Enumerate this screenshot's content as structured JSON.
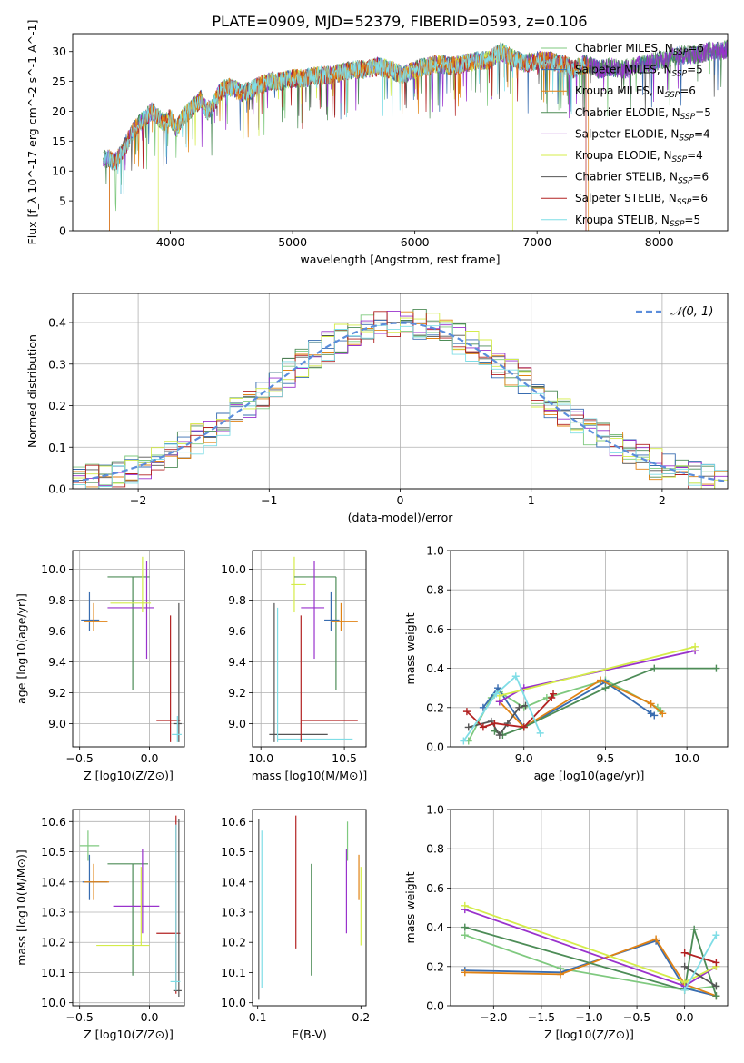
{
  "figure": {
    "title": "PLATE=0909, MJD=52379, FIBERID=0593, z=0.106"
  },
  "models": [
    {
      "name": "Chabrier MILES",
      "nssp": 6,
      "color": "#7fc97f"
    },
    {
      "name": "Salpeter MILES",
      "nssp": 5,
      "color": "#386cb0"
    },
    {
      "name": "Kroupa MILES",
      "nssp": 6,
      "color": "#e08214"
    },
    {
      "name": "Chabrier ELODIE",
      "nssp": 5,
      "color": "#4d8c57"
    },
    {
      "name": "Salpeter ELODIE",
      "nssp": 4,
      "color": "#9932cc"
    },
    {
      "name": "Kroupa ELODIE",
      "nssp": 4,
      "color": "#d4ec4a"
    },
    {
      "name": "Chabrier STELIB",
      "nssp": 6,
      "color": "#555555"
    },
    {
      "name": "Salpeter STELIB",
      "nssp": 6,
      "color": "#b22222"
    },
    {
      "name": "Kroupa STELIB",
      "nssp": 5,
      "color": "#7fdde6"
    }
  ],
  "chart_data": [
    {
      "id": "spectrum",
      "type": "line",
      "xlabel": "wavelength [Angstrom, rest frame]",
      "ylabel": "Flux [f_λ 10^-17 erg cm^-2 s^-1 A^-1]",
      "xlim": [
        3200,
        8560
      ],
      "ylim": [
        0,
        33
      ],
      "xticks": [
        4000,
        5000,
        6000,
        7000,
        8000
      ],
      "yticks": [
        0,
        5,
        10,
        15,
        20,
        25,
        30
      ],
      "legend_position": "right",
      "x": [
        3500,
        3550,
        3600,
        3650,
        3700,
        3750,
        3800,
        3850,
        3900,
        3950,
        4000,
        4050,
        4100,
        4150,
        4200,
        4250,
        4300,
        4350,
        4400,
        4450,
        4500,
        4600,
        4700,
        4800,
        4900,
        5000,
        5100,
        5200,
        5300,
        5400,
        5500,
        5600,
        5700,
        5800,
        5900,
        6000,
        6100,
        6200,
        6300,
        6400,
        6500,
        6600,
        6700,
        6800,
        6900,
        7000,
        7100,
        7200,
        7300,
        7400,
        7500,
        7600,
        7700,
        7800,
        7900,
        8000,
        8100,
        8200,
        8300,
        8400,
        8500,
        8560
      ],
      "flux": [
        12,
        11.5,
        13,
        15,
        17,
        18,
        19,
        20,
        19,
        18,
        19,
        17,
        19,
        20,
        21,
        22,
        20,
        21,
        23,
        24,
        24,
        23,
        24,
        25,
        25,
        25.5,
        25.5,
        26,
        26,
        26.5,
        27,
        27,
        27.5,
        27,
        26,
        27,
        27.5,
        28,
        27.5,
        28,
        28.5,
        28.5,
        30,
        29,
        28,
        28.5,
        28.5,
        28,
        27,
        28,
        27,
        27.5,
        27,
        27.5,
        28,
        28.5,
        29,
        29.5,
        29.5,
        30,
        30,
        30.5
      ]
    },
    {
      "id": "residuals",
      "type": "histogram",
      "xlabel": "(data-model)/error",
      "ylabel": "Normed distribution",
      "xlim": [
        -2.5,
        2.5
      ],
      "ylim": [
        0,
        0.47
      ],
      "xticks": [
        -2,
        -1,
        0,
        1,
        2
      ],
      "yticks": [
        0.0,
        0.1,
        0.2,
        0.3,
        0.4
      ],
      "gaussian_label": "𝒩(0, 1)",
      "gaussian_color": "#5b8ddb",
      "bin_width": 0.1
    },
    {
      "id": "age-vs-Z",
      "type": "errorbar",
      "xlabel": "Z [log10(Z/Z⊙)]",
      "ylabel": "age  [log10(age/yr)]",
      "xlim": [
        -0.55,
        0.25
      ],
      "ylim": [
        8.85,
        10.12
      ],
      "xticks": [
        -0.5,
        0.0
      ],
      "yticks": [
        9.0,
        9.2,
        9.4,
        9.6,
        9.8,
        10.0
      ],
      "points": [
        {
          "m": 1,
          "x": -0.43,
          "xl": -0.49,
          "xh": -0.36,
          "y": 9.67,
          "yl": 9.6,
          "yh": 9.85
        },
        {
          "m": 2,
          "x": -0.4,
          "xl": -0.47,
          "xh": -0.3,
          "y": 9.66,
          "yl": 9.6,
          "yh": 9.78
        },
        {
          "m": 3,
          "x": -0.12,
          "xl": -0.3,
          "xh": 0.0,
          "y": 9.95,
          "yl": 9.22,
          "yh": 9.95
        },
        {
          "m": 4,
          "x": -0.02,
          "xl": -0.3,
          "xh": 0.03,
          "y": 9.75,
          "yl": 9.42,
          "yh": 10.05
        },
        {
          "m": 5,
          "x": -0.05,
          "xl": -0.28,
          "xh": 0.01,
          "y": 9.78,
          "yl": 9.72,
          "yh": 10.08
        },
        {
          "m": 7,
          "x": 0.15,
          "xl": 0.05,
          "xh": 0.22,
          "y": 9.02,
          "yl": 8.88,
          "yh": 9.7
        },
        {
          "m": 6,
          "x": 0.21,
          "xl": 0.17,
          "xh": 0.23,
          "y": 9.0,
          "yl": 8.88,
          "yh": 9.78
        },
        {
          "m": 8,
          "x": 0.2,
          "xl": 0.16,
          "xh": 0.23,
          "y": 8.93,
          "yl": 8.88,
          "yh": 9.05
        }
      ]
    },
    {
      "id": "age-vs-mass",
      "type": "errorbar",
      "xlabel": "mass [log10(M/M⊙)]",
      "xlim": [
        9.95,
        10.63
      ],
      "ylim": [
        8.85,
        10.12
      ],
      "xticks": [
        10.0,
        10.5
      ],
      "yticks": [
        9.0,
        9.2,
        9.4,
        9.6,
        9.8,
        10.0
      ],
      "points": [
        {
          "m": 6,
          "x": 10.08,
          "xl": 10.05,
          "xh": 10.4,
          "y": 8.93,
          "yl": 8.88,
          "yh": 9.78
        },
        {
          "m": 8,
          "x": 10.1,
          "xl": 10.1,
          "xh": 10.55,
          "y": 8.9,
          "yl": 8.88,
          "yh": 9.75
        },
        {
          "m": 5,
          "x": 10.2,
          "xl": 10.18,
          "xh": 10.27,
          "y": 9.9,
          "yl": 9.72,
          "yh": 10.08
        },
        {
          "m": 3,
          "x": 10.45,
          "xl": 10.2,
          "xh": 10.45,
          "y": 9.95,
          "yl": 9.22,
          "yh": 9.95
        },
        {
          "m": 4,
          "x": 10.32,
          "xl": 10.24,
          "xh": 10.38,
          "y": 9.75,
          "yl": 9.42,
          "yh": 10.05
        },
        {
          "m": 7,
          "x": 10.24,
          "xl": 10.24,
          "xh": 10.58,
          "y": 9.02,
          "yl": 8.88,
          "yh": 9.7
        },
        {
          "m": 1,
          "x": 10.42,
          "xl": 10.38,
          "xh": 10.47,
          "y": 9.67,
          "yl": 9.6,
          "yh": 9.85
        },
        {
          "m": 2,
          "x": 10.48,
          "xl": 10.42,
          "xh": 10.58,
          "y": 9.66,
          "yl": 9.6,
          "yh": 9.78
        }
      ]
    },
    {
      "id": "weights-vs-age",
      "type": "line",
      "xlabel": "age  [log10(age/yr)]",
      "ylabel": "mass weight",
      "xlim": [
        8.55,
        10.25
      ],
      "ylim": [
        0,
        1
      ],
      "xticks": [
        9.0,
        9.5,
        10.0
      ],
      "yticks": [
        0.0,
        0.2,
        0.4,
        0.6,
        0.8,
        1.0
      ],
      "series": [
        {
          "m": 0,
          "x": [
            8.66,
            8.8,
            8.85,
            9.0,
            9.14,
            9.5,
            9.82,
            9.84
          ],
          "y": [
            0.03,
            0.25,
            0.28,
            0.2,
            0.25,
            0.34,
            0.2,
            0.18
          ]
        },
        {
          "m": 1,
          "x": [
            8.75,
            8.84,
            9.0,
            9.5,
            9.78,
            9.8
          ],
          "y": [
            0.2,
            0.3,
            0.1,
            0.33,
            0.17,
            0.16
          ]
        },
        {
          "m": 2,
          "x": [
            8.85,
            9.0,
            9.47,
            9.78,
            9.85
          ],
          "y": [
            0.23,
            0.1,
            0.34,
            0.22,
            0.17
          ]
        },
        {
          "m": 3,
          "x": [
            8.82,
            8.87,
            9.0,
            9.5,
            9.8,
            10.18
          ],
          "y": [
            0.08,
            0.06,
            0.1,
            0.3,
            0.4,
            0.4
          ]
        },
        {
          "m": 4,
          "x": [
            8.85,
            9.0,
            10.05
          ],
          "y": [
            0.23,
            0.3,
            0.49
          ]
        },
        {
          "m": 5,
          "x": [
            8.85,
            10.05
          ],
          "y": [
            0.26,
            0.51
          ]
        },
        {
          "m": 6,
          "x": [
            8.66,
            8.8,
            8.85,
            8.9,
            8.97,
            9.01
          ],
          "y": [
            0.1,
            0.13,
            0.06,
            0.12,
            0.2,
            0.21
          ]
        },
        {
          "m": 7,
          "x": [
            8.65,
            8.75,
            8.82,
            9.0,
            9.17,
            9.18
          ],
          "y": [
            0.18,
            0.1,
            0.12,
            0.1,
            0.25,
            0.27
          ]
        },
        {
          "m": 8,
          "x": [
            8.63,
            8.83,
            8.95,
            9.1
          ],
          "y": [
            0.03,
            0.27,
            0.36,
            0.07
          ]
        }
      ]
    },
    {
      "id": "mass-vs-Z",
      "type": "errorbar",
      "xlabel": "Z [log10(Z/Z⊙)]",
      "ylabel": "mass [log10(M/M⊙)]",
      "xlim": [
        -0.55,
        0.25
      ],
      "ylim": [
        9.99,
        10.64
      ],
      "xticks": [
        -0.5,
        0.0
      ],
      "yticks": [
        10.0,
        10.1,
        10.2,
        10.3,
        10.4,
        10.5,
        10.6
      ],
      "points": [
        {
          "m": 0,
          "x": -0.44,
          "xl": -0.5,
          "xh": -0.36,
          "y": 10.52,
          "yl": 10.47,
          "yh": 10.57
        },
        {
          "m": 1,
          "x": -0.43,
          "xl": -0.48,
          "xh": -0.3,
          "y": 10.4,
          "yl": 10.34,
          "yh": 10.49
        },
        {
          "m": 2,
          "x": -0.4,
          "xl": -0.47,
          "xh": -0.29,
          "y": 10.4,
          "yl": 10.34,
          "yh": 10.46
        },
        {
          "m": 3,
          "x": -0.12,
          "xl": -0.3,
          "xh": -0.01,
          "y": 10.46,
          "yl": 10.09,
          "yh": 10.46
        },
        {
          "m": 4,
          "x": -0.05,
          "xl": -0.26,
          "xh": 0.07,
          "y": 10.32,
          "yl": 10.23,
          "yh": 10.51
        },
        {
          "m": 5,
          "x": -0.06,
          "xl": -0.38,
          "xh": 0.0,
          "y": 10.19,
          "yl": 10.19,
          "yh": 10.45
        },
        {
          "m": 7,
          "x": 0.19,
          "xl": 0.05,
          "xh": 0.22,
          "y": 10.23,
          "yl": 10.03,
          "yh": 10.62
        },
        {
          "m": 6,
          "x": 0.21,
          "xl": 0.17,
          "xh": 0.23,
          "y": 10.04,
          "yl": 10.02,
          "yh": 10.61
        },
        {
          "m": 8,
          "x": 0.19,
          "xl": 0.15,
          "xh": 0.22,
          "y": 10.07,
          "yl": 10.04,
          "yh": 10.59
        }
      ]
    },
    {
      "id": "mass-vs-ebv",
      "type": "errorbar",
      "xlabel": "E(B-V)",
      "xlim": [
        0.095,
        0.205
      ],
      "ylim": [
        9.99,
        10.64
      ],
      "xticks": [
        0.1,
        0.2
      ],
      "yticks": [
        10.0,
        10.1,
        10.2,
        10.3,
        10.4,
        10.5,
        10.6
      ],
      "points": [
        {
          "m": 6,
          "x": 0.101,
          "y": 10.3,
          "yl": 10.01,
          "yh": 10.61
        },
        {
          "m": 8,
          "x": 0.104,
          "y": 10.3,
          "yl": 10.05,
          "yh": 10.57
        },
        {
          "m": 7,
          "x": 0.137,
          "y": 10.4,
          "yl": 10.18,
          "yh": 10.62
        },
        {
          "m": 3,
          "x": 0.152,
          "y": 10.3,
          "yl": 10.09,
          "yh": 10.46
        },
        {
          "m": 4,
          "x": 0.186,
          "y": 10.35,
          "yl": 10.23,
          "yh": 10.51
        },
        {
          "m": 0,
          "x": 0.187,
          "y": 10.52,
          "yl": 10.47,
          "yh": 10.6
        },
        {
          "m": 2,
          "x": 0.198,
          "y": 10.4,
          "yl": 10.34,
          "yh": 10.49
        },
        {
          "m": 5,
          "x": 0.2,
          "y": 10.3,
          "yl": 10.19,
          "yh": 10.45
        }
      ]
    },
    {
      "id": "weights-vs-Z",
      "type": "line",
      "xlabel": "Z [log10(Z/Z⊙)]",
      "ylabel": "mass weight",
      "xlim": [
        -2.45,
        0.45
      ],
      "ylim": [
        0,
        1
      ],
      "xticks": [
        -2.0,
        -1.5,
        -1.0,
        -0.5,
        0.0
      ],
      "yticks": [
        0.0,
        0.2,
        0.4,
        0.6,
        0.8,
        1.0
      ],
      "series": [
        {
          "m": 0,
          "x": [
            -2.3,
            -1.3,
            0.0,
            0.33
          ],
          "y": [
            0.36,
            0.19,
            0.08,
            0.1
          ]
        },
        {
          "m": 1,
          "x": [
            -2.3,
            -1.3,
            -0.3,
            0.0,
            0.33
          ],
          "y": [
            0.18,
            0.17,
            0.33,
            0.09,
            0.05
          ]
        },
        {
          "m": 2,
          "x": [
            -2.3,
            -1.3,
            -0.3,
            0.0,
            0.33
          ],
          "y": [
            0.17,
            0.16,
            0.34,
            0.11,
            0.05
          ]
        },
        {
          "m": 3,
          "x": [
            -2.3,
            0.0,
            0.1,
            0.33
          ],
          "y": [
            0.4,
            0.08,
            0.39,
            0.05
          ]
        },
        {
          "m": 4,
          "x": [
            -2.3,
            0.0,
            0.33
          ],
          "y": [
            0.49,
            0.1,
            0.2
          ]
        },
        {
          "m": 5,
          "x": [
            -2.3,
            0.0,
            0.33
          ],
          "y": [
            0.51,
            0.12,
            0.2
          ]
        },
        {
          "m": 6,
          "x": [
            0.0,
            0.33
          ],
          "y": [
            0.2,
            0.1
          ]
        },
        {
          "m": 7,
          "x": [
            0.0,
            0.33
          ],
          "y": [
            0.27,
            0.22
          ]
        },
        {
          "m": 8,
          "x": [
            0.0,
            0.33
          ],
          "y": [
            0.08,
            0.36
          ]
        }
      ]
    }
  ]
}
